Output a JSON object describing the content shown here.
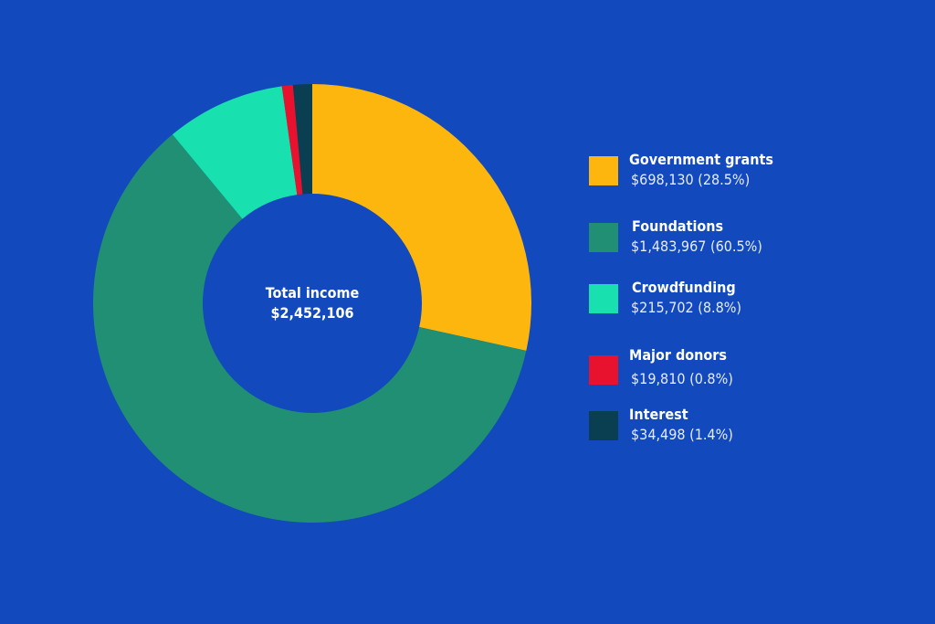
{
  "chart_data": {
    "type": "pie",
    "donut": true,
    "center_label": {
      "title": "Total income",
      "value": "$2,452,106"
    },
    "legend_position": "right",
    "slices": [
      {
        "name": "Government grants",
        "value": 698130,
        "label": "$698,130 (28.5%)",
        "percent": 28.5,
        "color": "#FDB60D"
      },
      {
        "name": "Foundations",
        "value": 1483967,
        "label": "$1,483,967 (60.5%)",
        "percent": 60.5,
        "color": "#208F74"
      },
      {
        "name": "Crowdfunding",
        "value": 215702,
        "label": "$215,702 (8.8%)",
        "percent": 8.8,
        "color": "#18E0AE"
      },
      {
        "name": "Major donors",
        "value": 19810,
        "label": "$19,810 (0.8%)",
        "percent": 0.8,
        "color": "#E8112E"
      },
      {
        "name": "Interest",
        "value": 34498,
        "label": "$34,498 (1.4%)",
        "percent": 1.4,
        "color": "#0A3F52"
      }
    ]
  },
  "colors": {
    "background": "#1249BD"
  }
}
